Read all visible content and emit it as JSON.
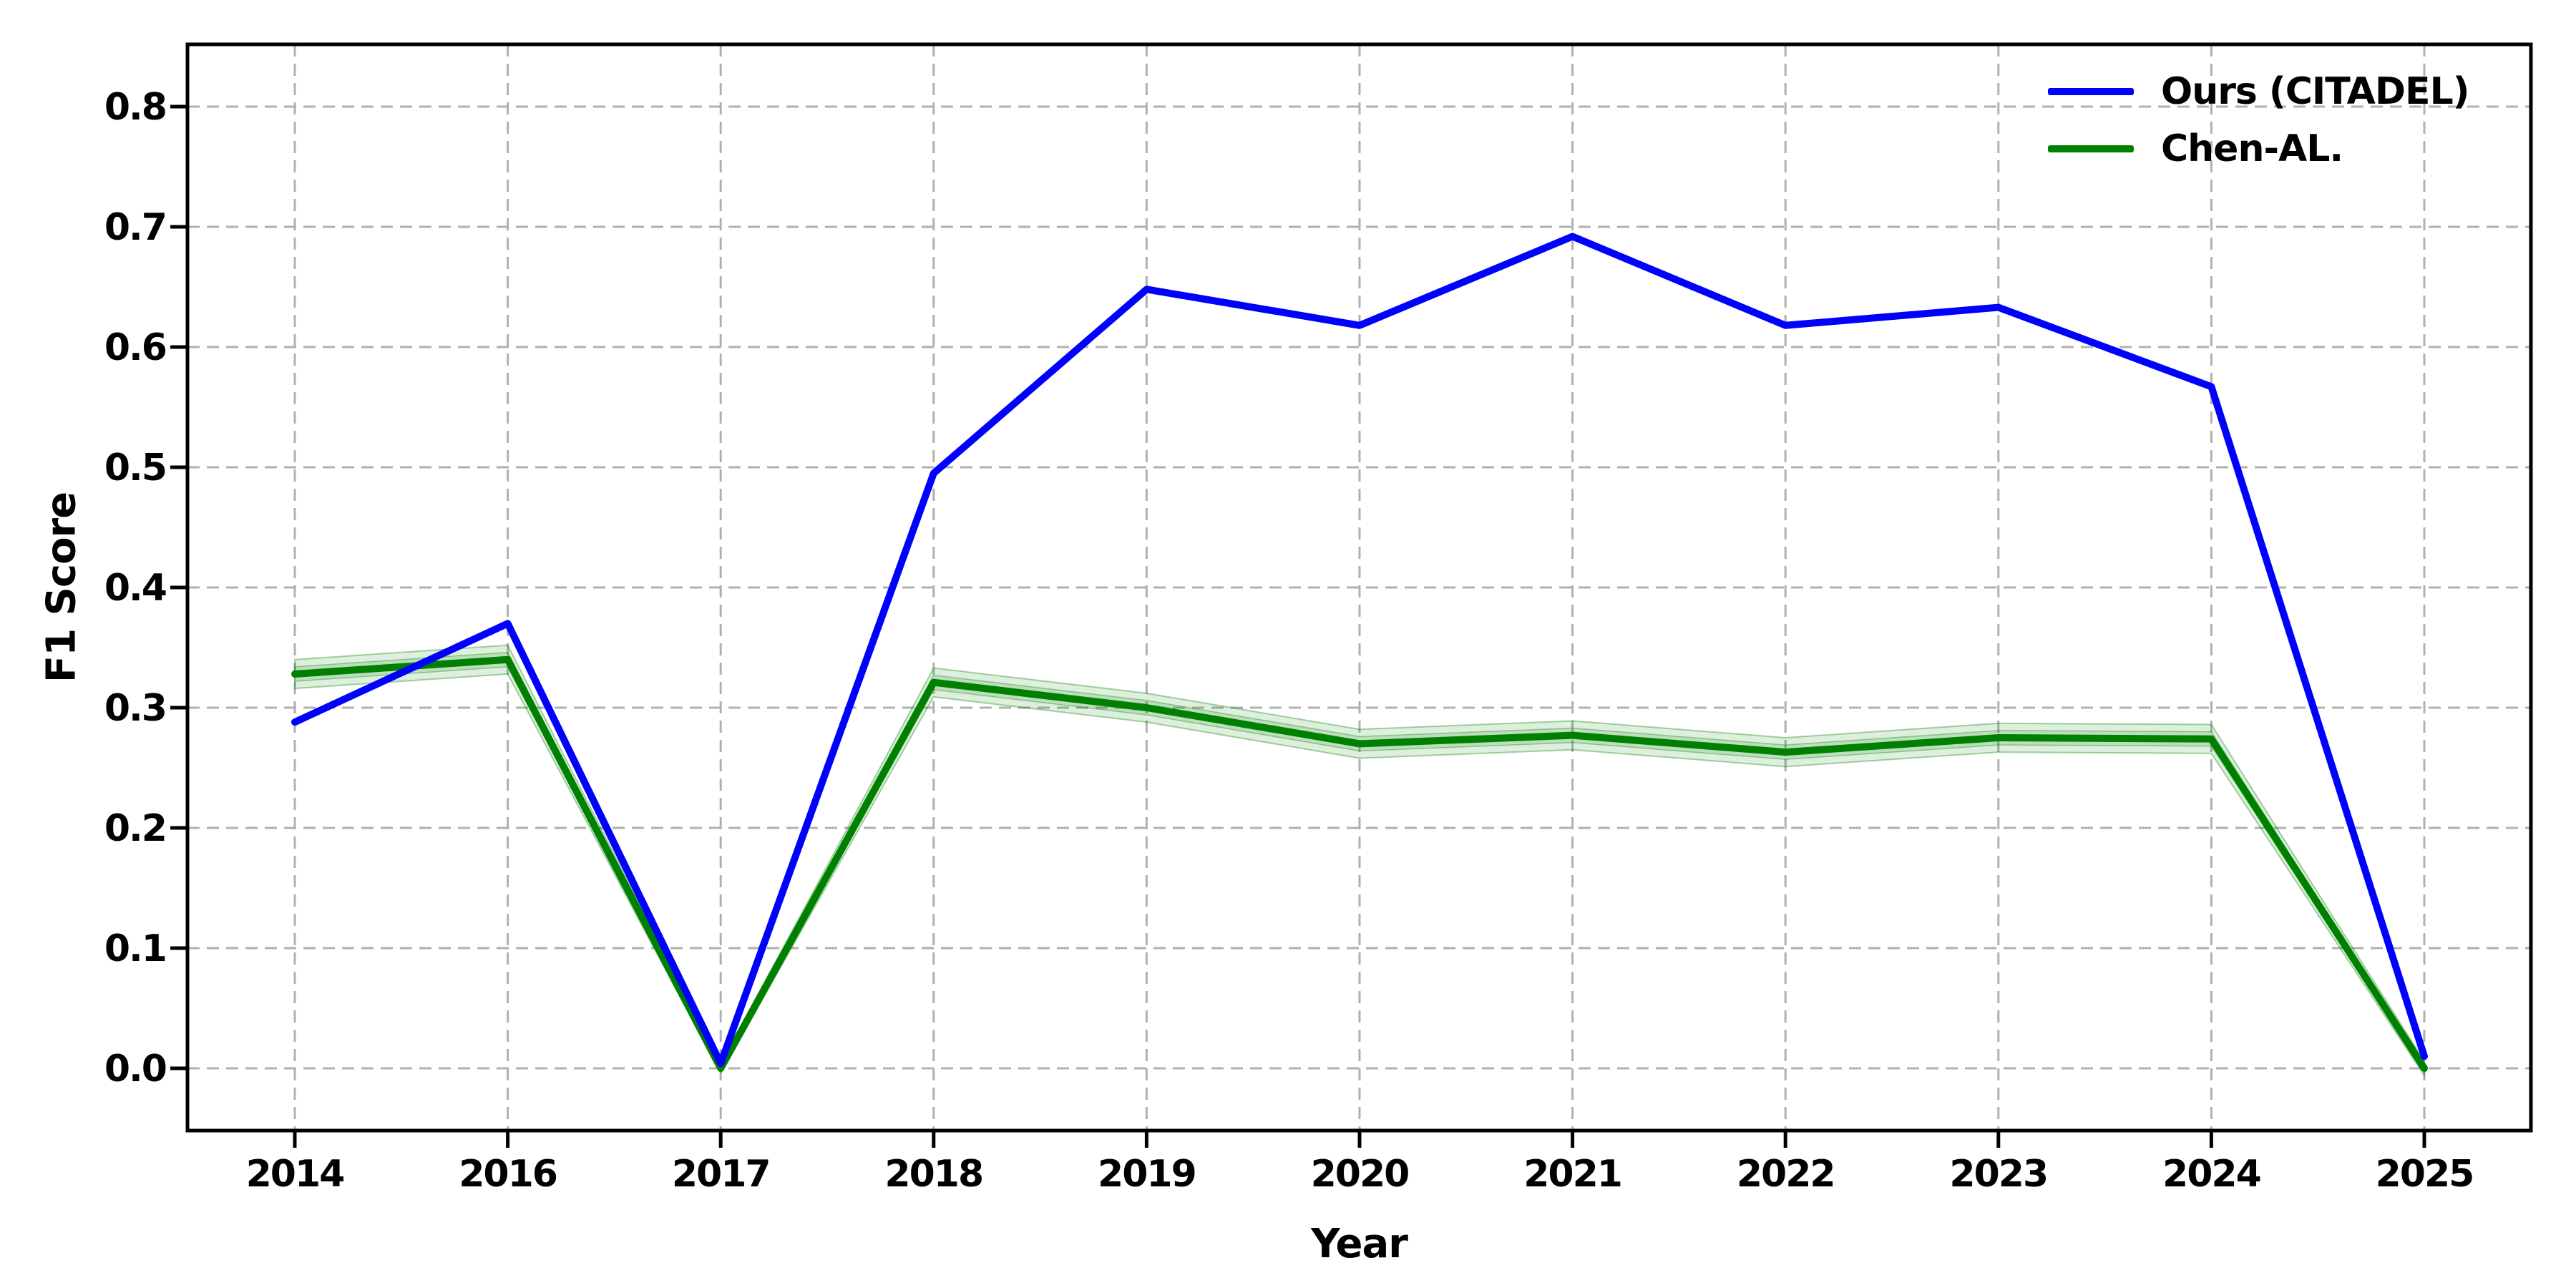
{
  "figure": {
    "background": "#ffffff"
  },
  "axes": {
    "xlabel": "Year",
    "ylabel": "F1 Score",
    "x_tick_labels": [
      "2014",
      "2016",
      "2017",
      "2018",
      "2019",
      "2020",
      "2021",
      "2022",
      "2023",
      "2024",
      "2025"
    ],
    "y_tick_labels": [
      "0.0",
      "0.1",
      "0.2",
      "0.3",
      "0.4",
      "0.5",
      "0.6",
      "0.7",
      "0.8"
    ],
    "y_tick_values": [
      0.0,
      0.1,
      0.2,
      0.3,
      0.4,
      0.5,
      0.6,
      0.7,
      0.8
    ]
  },
  "legend": {
    "position": "upper right",
    "frame": false,
    "items": [
      {
        "label": "Ours (CITADEL)",
        "color": "#0000ff"
      },
      {
        "label": "Chen-AL.",
        "color": "#008000"
      }
    ]
  },
  "colors": {
    "grid": "#b0b0b0",
    "axis": "#000000",
    "series_blue": "#0000ff",
    "series_green": "#008000",
    "band_fill": "rgba(0,128,0,0.13)",
    "band_fill_inner": "rgba(0,128,0,0.15)",
    "band_edge": "rgba(0,128,0,0.35)"
  },
  "chart_data": {
    "type": "line",
    "title": "",
    "xlabel": "Year",
    "ylabel": "F1 Score",
    "categories": [
      2014,
      2016,
      2017,
      2018,
      2019,
      2020,
      2021,
      2022,
      2023,
      2024,
      2025
    ],
    "x_positions": [
      0,
      1,
      2,
      3,
      4,
      5,
      6,
      7,
      8,
      9,
      10
    ],
    "ylim": [
      -0.052,
      0.853
    ],
    "grid": "both",
    "grid_style": "dashed",
    "legend_position": "upper right",
    "series": [
      {
        "name": "Ours (CITADEL)",
        "color": "#0000ff",
        "values": [
          0.288,
          0.37,
          0.004,
          0.495,
          0.648,
          0.618,
          0.692,
          0.618,
          0.633,
          0.567,
          0.01
        ]
      },
      {
        "name": "Chen-AL.",
        "color": "#008000",
        "values": [
          0.328,
          0.34,
          0.0,
          0.321,
          0.3,
          0.27,
          0.277,
          0.263,
          0.275,
          0.274,
          0.0
        ],
        "band_half_width_outer": [
          0.012,
          0.012,
          0.004,
          0.012,
          0.012,
          0.012,
          0.012,
          0.012,
          0.012,
          0.012,
          0.006
        ],
        "band_half_width_inner": [
          0.006,
          0.006,
          0.002,
          0.006,
          0.006,
          0.006,
          0.006,
          0.006,
          0.006,
          0.006,
          0.003
        ]
      }
    ]
  }
}
